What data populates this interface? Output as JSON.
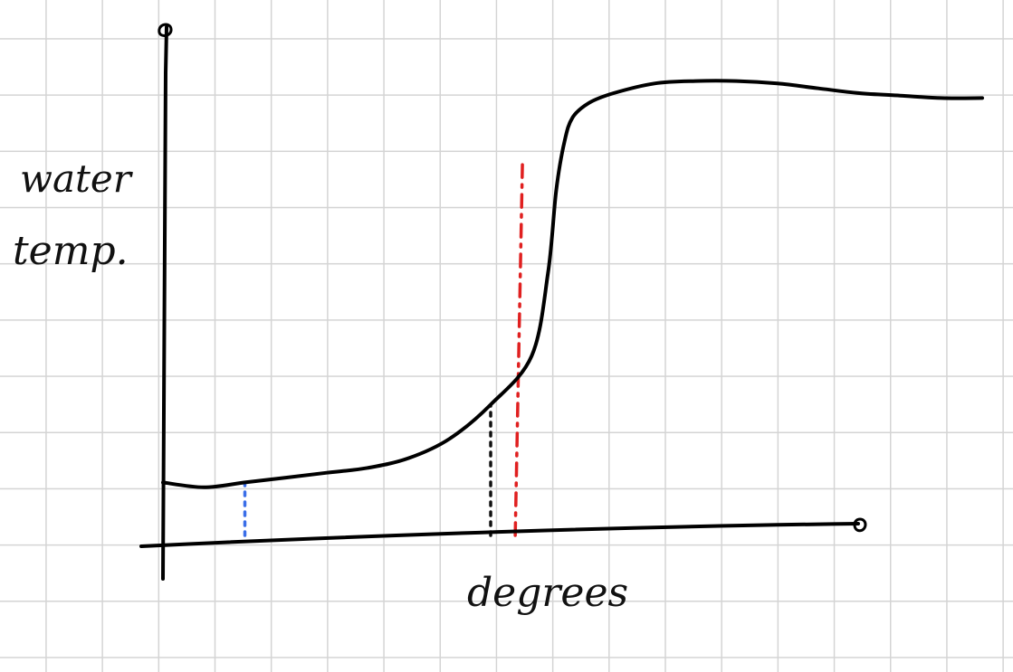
{
  "chart_data": {
    "type": "line",
    "xlabel": "degrees",
    "ylabel_lines": [
      "water",
      "temp."
    ],
    "grid": true,
    "x_range": [
      0,
      100
    ],
    "y_range": [
      0,
      100
    ],
    "series": [
      {
        "x": [
          0,
          5,
          10,
          15,
          20,
          25,
          30,
          35,
          40,
          45,
          47,
          48,
          49,
          50,
          52,
          55,
          60,
          65,
          70,
          75,
          80,
          85,
          90,
          95,
          100
        ],
        "y": [
          12,
          11,
          12,
          13,
          14,
          15,
          17,
          21,
          28,
          38,
          55,
          72,
          82,
          87,
          90,
          92,
          94,
          94.5,
          94.5,
          94,
          93,
          92,
          91.5,
          91,
          91
        ],
        "color": "#000000"
      }
    ],
    "markers": [
      {
        "x": 10,
        "y_top": 12,
        "color": "#3a6ee8",
        "style": "dotted"
      },
      {
        "x": 40,
        "y_top": 28,
        "color": "#111111",
        "style": "dotted"
      },
      {
        "x": 43,
        "y_top": 78,
        "color": "#e02020",
        "style": "dash-dot"
      }
    ],
    "colors": {
      "curve": "#000000",
      "axes": "#000000",
      "grid": "#d4d4d4"
    }
  }
}
